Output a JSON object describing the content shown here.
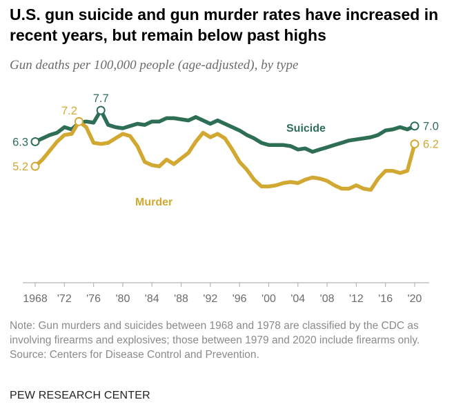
{
  "header": {
    "title": "U.S. gun suicide and gun murder rates have increased in recent years, but remain below past highs",
    "subtitle": "Gun deaths per 100,000 people (age-adjusted), by type"
  },
  "notes": {
    "note": "Note: Gun murders and suicides between 1968 and 1978 are classified by the CDC as involving firearms and explosives; those between 1979 and 2020 include firearms only.",
    "source": "Source: Centers for Disease Control and Prevention."
  },
  "footer": {
    "org": "PEW RESEARCH CENTER"
  },
  "chart_data": {
    "type": "line",
    "title": "",
    "xlabel": "",
    "ylabel": "",
    "xlim": [
      1968,
      2020
    ],
    "ylim": [
      0,
      8
    ],
    "grid": false,
    "legend": "inline",
    "x_tick_labels": [
      "1968",
      "'72",
      "'76",
      "'80",
      "'84",
      "'88",
      "'92",
      "'96",
      "'00",
      "'04",
      "'08",
      "'12",
      "'16",
      "'20"
    ],
    "x_tick_years": [
      1968,
      1972,
      1976,
      1980,
      1984,
      1988,
      1992,
      1996,
      2000,
      2004,
      2008,
      2012,
      2016,
      2020
    ],
    "x": [
      1968,
      1969,
      1970,
      1971,
      1972,
      1973,
      1974,
      1975,
      1976,
      1977,
      1978,
      1979,
      1980,
      1981,
      1982,
      1983,
      1984,
      1985,
      1986,
      1987,
      1988,
      1989,
      1990,
      1991,
      1992,
      1993,
      1994,
      1995,
      1996,
      1997,
      1998,
      1999,
      2000,
      2001,
      2002,
      2003,
      2004,
      2005,
      2006,
      2007,
      2008,
      2009,
      2010,
      2011,
      2012,
      2013,
      2014,
      2015,
      2016,
      2017,
      2018,
      2019,
      2020
    ],
    "series": [
      {
        "name": "Suicide",
        "color": "#2e6e55",
        "values": [
          6.3,
          6.45,
          6.6,
          6.7,
          6.95,
          6.85,
          7.15,
          7.2,
          7.15,
          7.7,
          7.05,
          6.95,
          6.9,
          7.0,
          7.1,
          7.05,
          7.2,
          7.2,
          7.35,
          7.35,
          7.3,
          7.25,
          7.4,
          7.25,
          7.1,
          7.25,
          7.1,
          6.95,
          6.8,
          6.6,
          6.45,
          6.25,
          6.15,
          6.15,
          6.15,
          6.1,
          5.95,
          6.0,
          5.85,
          5.95,
          6.05,
          6.15,
          6.25,
          6.35,
          6.4,
          6.45,
          6.5,
          6.6,
          6.8,
          6.85,
          6.95,
          6.85,
          7.0
        ]
      },
      {
        "name": "Murder",
        "color": "#d1a832",
        "values": [
          5.2,
          5.5,
          5.9,
          6.3,
          6.6,
          6.65,
          7.2,
          6.95,
          6.25,
          6.2,
          6.25,
          6.45,
          6.65,
          6.55,
          6.1,
          5.4,
          5.25,
          5.2,
          5.5,
          5.3,
          5.55,
          5.8,
          6.3,
          6.7,
          6.5,
          6.65,
          6.45,
          5.95,
          5.4,
          5.05,
          4.6,
          4.3,
          4.3,
          4.35,
          4.45,
          4.5,
          4.45,
          4.6,
          4.7,
          4.65,
          4.55,
          4.35,
          4.2,
          4.2,
          4.35,
          4.2,
          4.15,
          4.65,
          5.0,
          5.0,
          4.9,
          5.0,
          6.2
        ]
      }
    ],
    "annotations": [
      {
        "series": "Suicide",
        "year": 1968,
        "text": "6.3",
        "side": "left"
      },
      {
        "series": "Suicide",
        "year": 1977,
        "text": "7.7",
        "side": "top"
      },
      {
        "series": "Suicide",
        "year": 2020,
        "text": "7.0",
        "side": "right"
      },
      {
        "series": "Murder",
        "year": 1968,
        "text": "5.2",
        "side": "left"
      },
      {
        "series": "Murder",
        "year": 1974,
        "text": "7.2",
        "side": "top-left"
      },
      {
        "series": "Murder",
        "year": 2020,
        "text": "6.2",
        "side": "right"
      }
    ]
  }
}
